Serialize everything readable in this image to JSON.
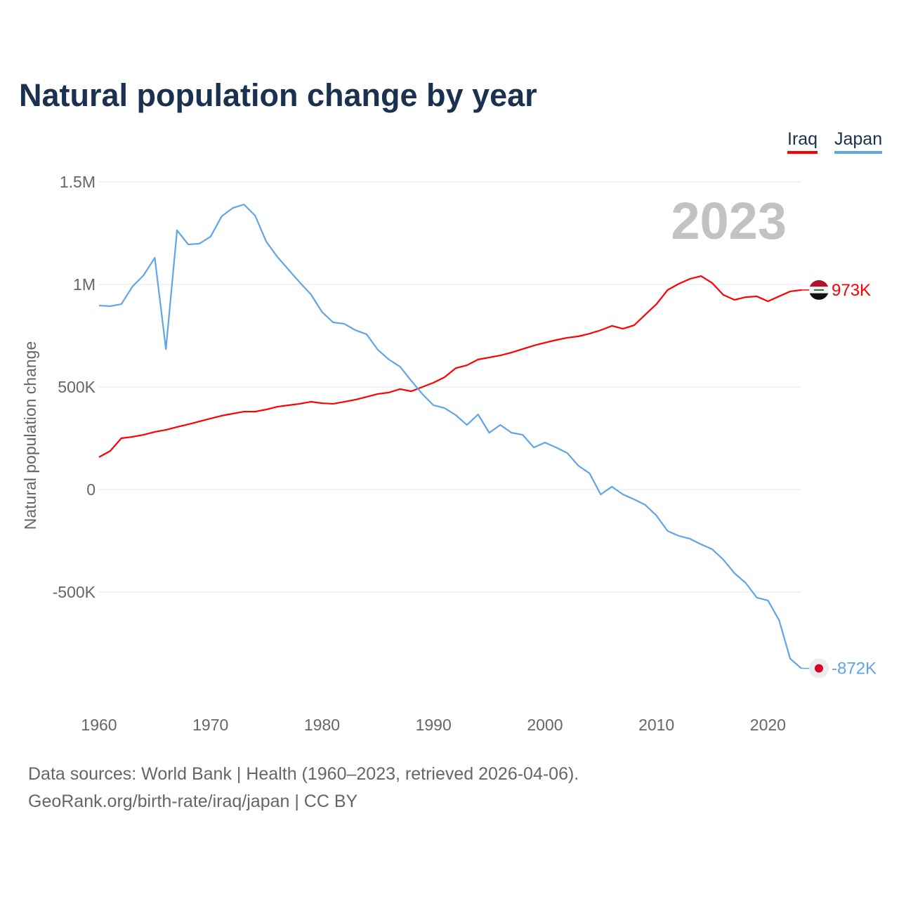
{
  "chart_data": {
    "type": "line",
    "title": "Natural population change by year",
    "xlabel": "",
    "ylabel": "Natural population change",
    "xlim": [
      1960,
      2023
    ],
    "ylim": [
      -1000000,
      1500000
    ],
    "yticks": [
      {
        "v": 1500000,
        "label": "1.5M"
      },
      {
        "v": 1000000,
        "label": "1M"
      },
      {
        "v": 500000,
        "label": "500K"
      },
      {
        "v": 0,
        "label": "0"
      },
      {
        "v": -500000,
        "label": "-500K"
      }
    ],
    "xticks": [
      1960,
      1970,
      1980,
      1990,
      2000,
      2010,
      2020
    ],
    "year_label": "2023",
    "legend_position": "top-right",
    "grid": true,
    "x": [
      1960,
      1961,
      1962,
      1963,
      1964,
      1965,
      1966,
      1967,
      1968,
      1969,
      1970,
      1971,
      1972,
      1973,
      1974,
      1975,
      1976,
      1977,
      1978,
      1979,
      1980,
      1981,
      1982,
      1983,
      1984,
      1985,
      1986,
      1987,
      1988,
      1989,
      1990,
      1991,
      1992,
      1993,
      1994,
      1995,
      1996,
      1997,
      1998,
      1999,
      2000,
      2001,
      2002,
      2003,
      2004,
      2005,
      2006,
      2007,
      2008,
      2009,
      2010,
      2011,
      2012,
      2013,
      2014,
      2015,
      2016,
      2017,
      2018,
      2019,
      2020,
      2021,
      2022,
      2023
    ],
    "series": [
      {
        "name": "Iraq",
        "color": "#ff0000",
        "end_label": "973K",
        "flag": "iraq-flag",
        "values": [
          158000,
          188000,
          250000,
          257000,
          267000,
          281000,
          291000,
          305000,
          318000,
          332000,
          346000,
          360000,
          370000,
          380000,
          380000,
          390000,
          404000,
          411000,
          418000,
          428000,
          421000,
          418000,
          428000,
          438000,
          452000,
          466000,
          473000,
          490000,
          479000,
          500000,
          521000,
          548000,
          592000,
          606000,
          634000,
          644000,
          654000,
          668000,
          685000,
          702000,
          716000,
          729000,
          740000,
          747000,
          760000,
          777000,
          798000,
          784000,
          801000,
          853000,
          904000,
          973000,
          1003000,
          1027000,
          1041000,
          1007000,
          949000,
          925000,
          938000,
          942000,
          918000,
          942000,
          966000,
          973000
        ]
      },
      {
        "name": "Japan",
        "color": "#60a5e8",
        "end_label": "-872K",
        "flag": "japan-flag",
        "values": [
          897000,
          894000,
          904000,
          990000,
          1045000,
          1130000,
          685000,
          1264000,
          1195000,
          1199000,
          1233000,
          1332000,
          1373000,
          1390000,
          1336000,
          1209000,
          1134000,
          1072000,
          1010000,
          952000,
          866000,
          815000,
          808000,
          777000,
          757000,
          682000,
          634000,
          599000,
          531000,
          466000,
          411000,
          397000,
          363000,
          315000,
          366000,
          277000,
          315000,
          277000,
          267000,
          205000,
          229000,
          205000,
          178000,
          116000,
          79000,
          -24000,
          14000,
          -24000,
          -48000,
          -75000,
          -127000,
          -202000,
          -226000,
          -240000,
          -267000,
          -291000,
          -342000,
          -408000,
          -455000,
          -527000,
          -541000,
          -637000,
          -825000,
          -872000
        ]
      }
    ]
  },
  "footer": {
    "line1": "Data sources: World Bank | Health (1960–2023, retrieved 2026-04-06).",
    "line2": "GeoRank.org/birth-rate/iraq/japan | CC BY"
  }
}
